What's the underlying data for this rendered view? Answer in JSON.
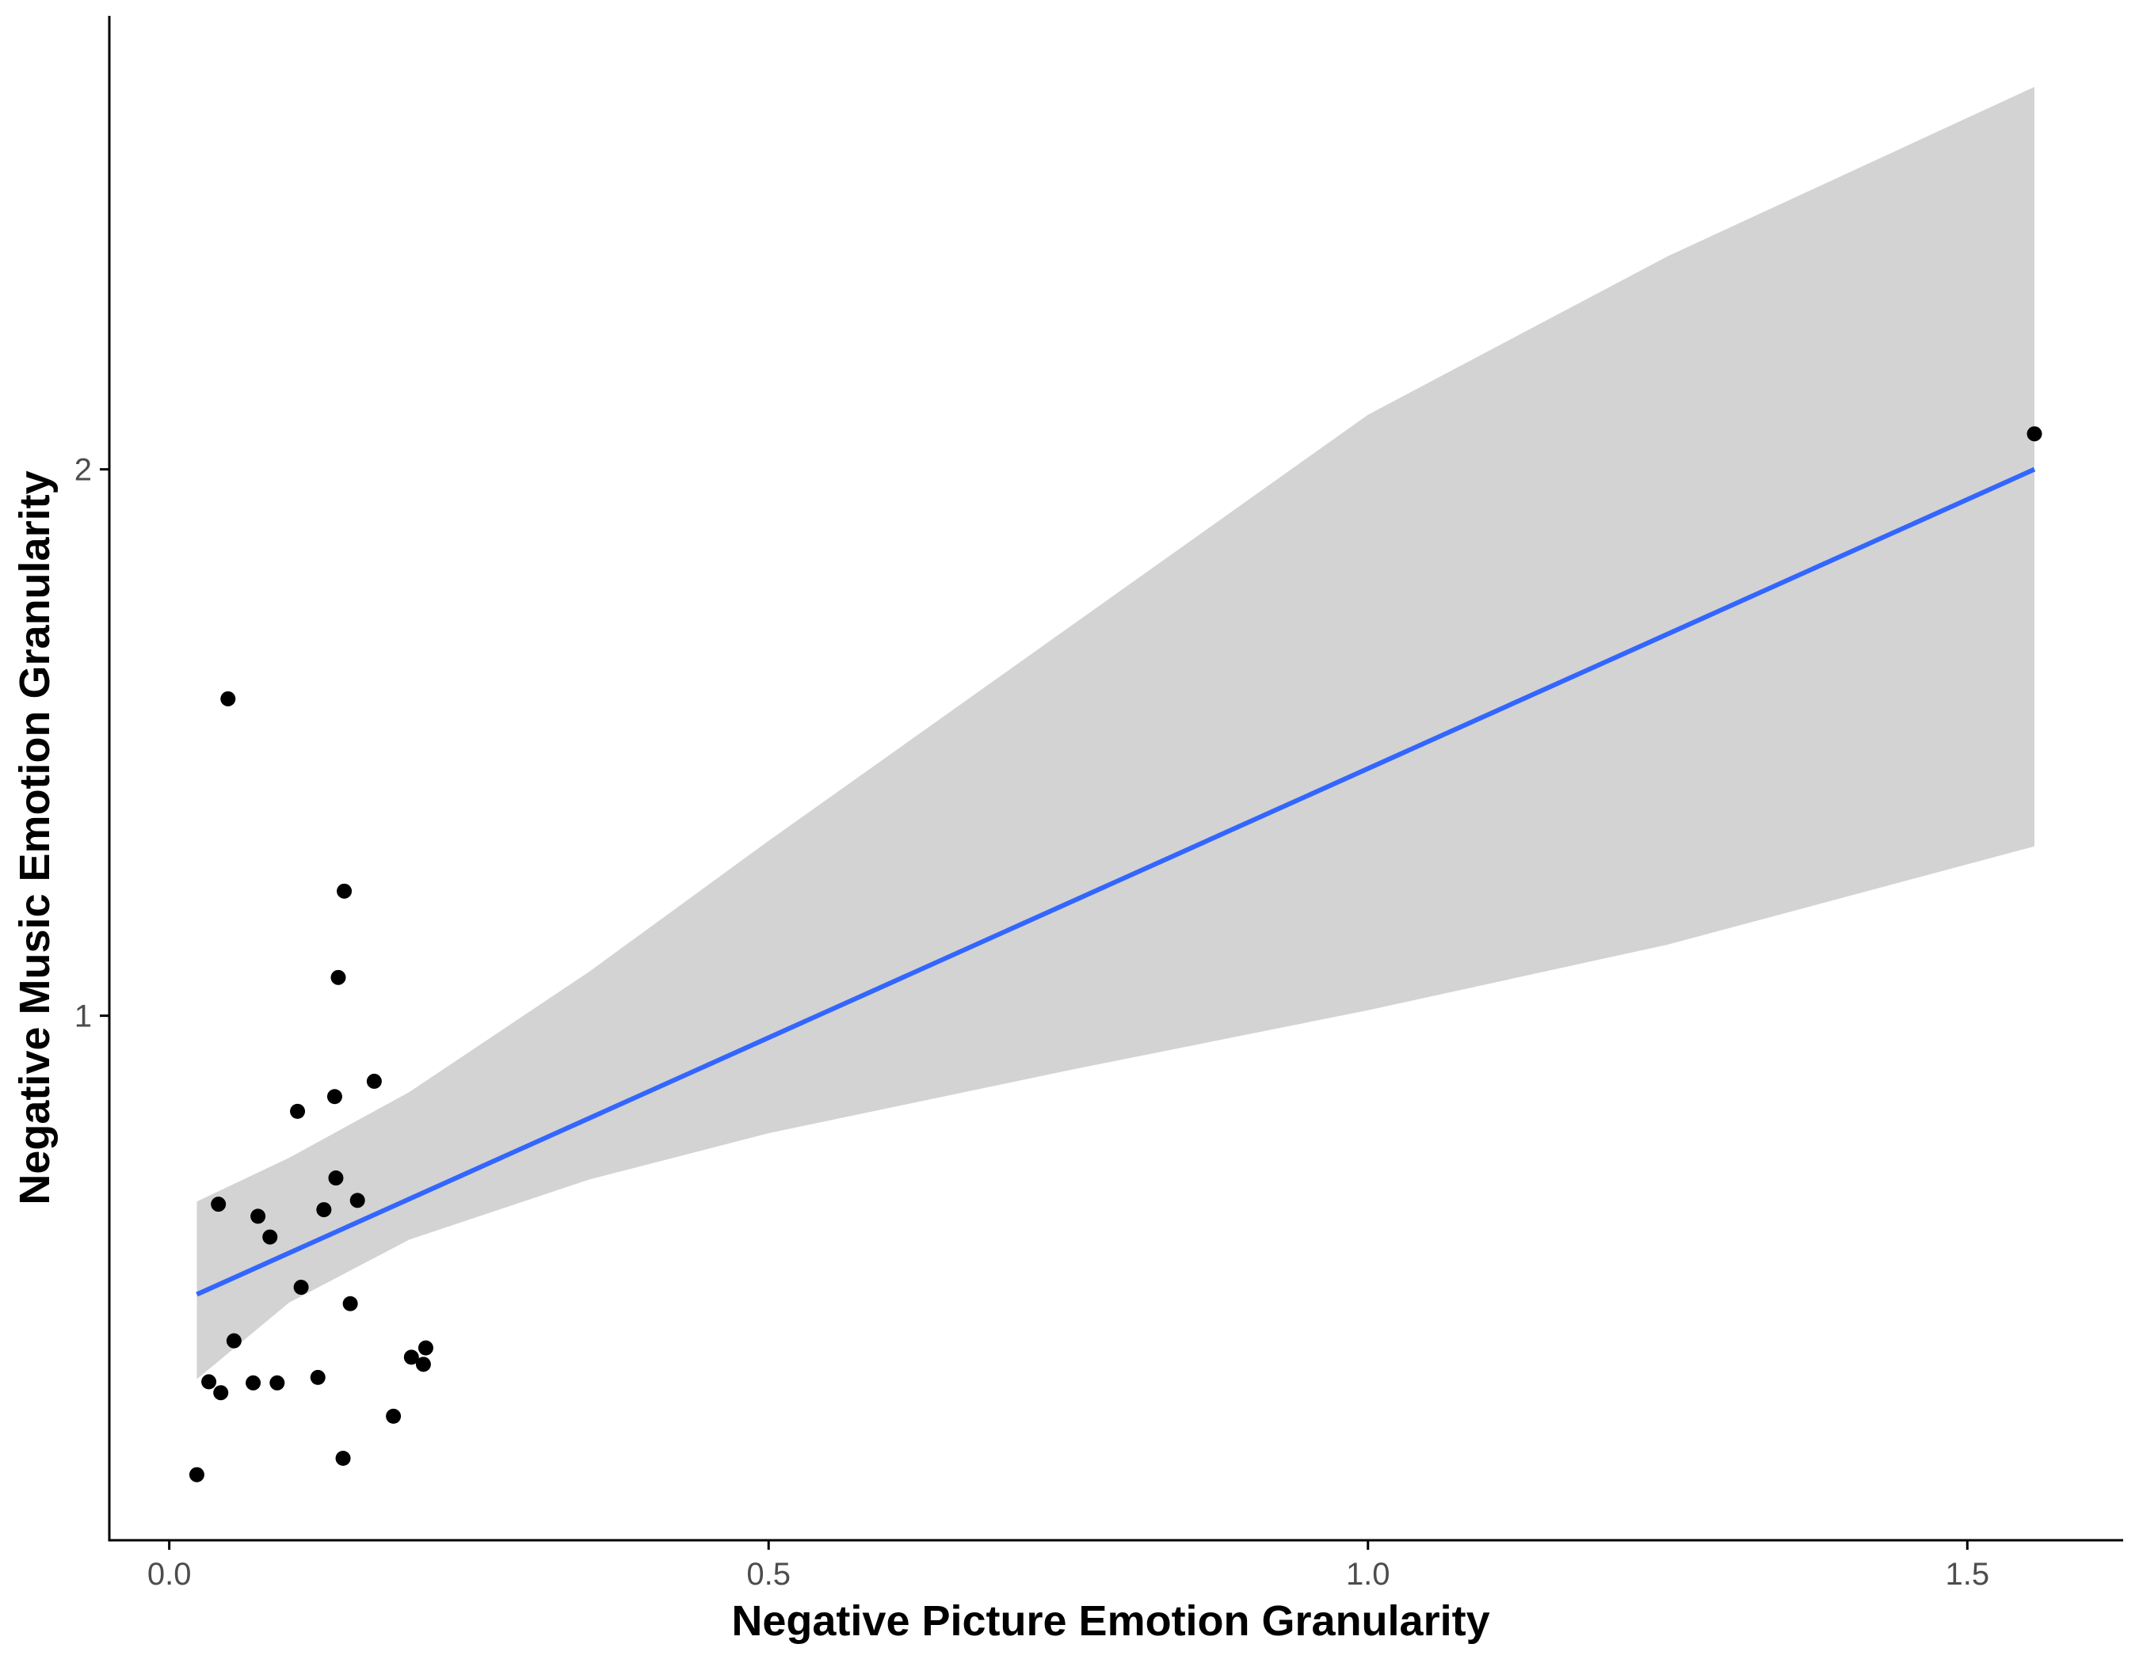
{
  "chart_data": {
    "type": "scatter",
    "title": "",
    "xlabel": "Negative Picture Emotion Granularity",
    "ylabel": "Negative Music Emotion Granularity",
    "xlim": [
      -0.05,
      1.63
    ],
    "ylim": [
      0.04,
      2.83
    ],
    "x_ticks": [
      0.0,
      0.5,
      1.0,
      1.5
    ],
    "x_tick_labels": [
      "0.0",
      "0.5",
      "1.0",
      "1.5"
    ],
    "y_ticks": [
      1,
      2
    ],
    "y_tick_labels": [
      "1",
      "2"
    ],
    "grid": false,
    "legend": "none",
    "points": [
      {
        "x": 0.023,
        "y": 0.16
      },
      {
        "x": 0.049,
        "y": 1.58
      },
      {
        "x": 0.041,
        "y": 0.655
      },
      {
        "x": 0.054,
        "y": 0.405
      },
      {
        "x": 0.033,
        "y": 0.33
      },
      {
        "x": 0.043,
        "y": 0.31
      },
      {
        "x": 0.074,
        "y": 0.633
      },
      {
        "x": 0.084,
        "y": 0.595
      },
      {
        "x": 0.07,
        "y": 0.328
      },
      {
        "x": 0.09,
        "y": 0.328
      },
      {
        "x": 0.107,
        "y": 0.825
      },
      {
        "x": 0.11,
        "y": 0.503
      },
      {
        "x": 0.124,
        "y": 0.338
      },
      {
        "x": 0.129,
        "y": 0.645
      },
      {
        "x": 0.138,
        "y": 0.852
      },
      {
        "x": 0.139,
        "y": 0.703
      },
      {
        "x": 0.141,
        "y": 1.07
      },
      {
        "x": 0.146,
        "y": 1.228
      },
      {
        "x": 0.145,
        "y": 0.19
      },
      {
        "x": 0.151,
        "y": 0.473
      },
      {
        "x": 0.157,
        "y": 0.662
      },
      {
        "x": 0.171,
        "y": 0.88
      },
      {
        "x": 0.187,
        "y": 0.267
      },
      {
        "x": 0.202,
        "y": 0.375
      },
      {
        "x": 0.212,
        "y": 0.362
      },
      {
        "x": 0.214,
        "y": 0.392
      },
      {
        "x": 1.556,
        "y": 2.065
      }
    ],
    "fit_line": {
      "method": "lm",
      "color": "#3366FF",
      "x": [
        0.023,
        1.556
      ],
      "y": [
        0.49,
        2.0
      ]
    },
    "confidence_band": {
      "color": "#D3D3D3",
      "x": [
        0.023,
        0.1,
        0.2,
        0.35,
        0.5,
        0.75,
        1.0,
        1.25,
        1.556
      ],
      "lower": [
        0.335,
        0.475,
        0.59,
        0.7,
        0.785,
        0.9,
        1.01,
        1.13,
        1.31
      ],
      "upper": [
        0.66,
        0.74,
        0.86,
        1.08,
        1.32,
        1.71,
        2.1,
        2.39,
        2.7
      ]
    },
    "colors": {
      "points": "#000000",
      "fit_line": "#3366FF",
      "band": "#D3D3D3",
      "axis": "#000000",
      "tick_labels": "#4d4d4d"
    }
  }
}
